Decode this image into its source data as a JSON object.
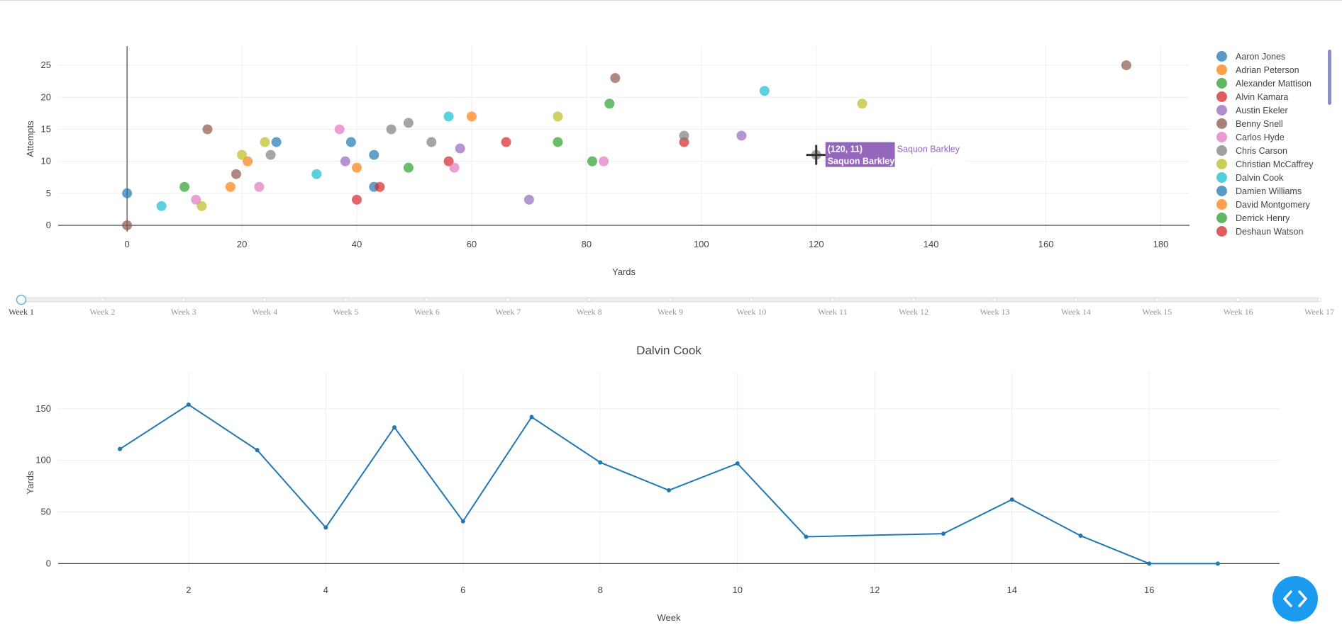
{
  "chart_data": [
    {
      "type": "scatter",
      "xlabel": "Yards",
      "ylabel": "Attempts",
      "xlim": [
        -12,
        185
      ],
      "ylim": [
        -1,
        28
      ],
      "x_ticks": [
        0,
        20,
        40,
        60,
        80,
        100,
        120,
        140,
        160,
        180
      ],
      "y_ticks": [
        0,
        5,
        10,
        15,
        20,
        25
      ],
      "points": [
        {
          "name": "Aaron Jones",
          "x": 0,
          "y": 5
        },
        {
          "name": "Aaron Jones",
          "x": 26,
          "y": 13
        },
        {
          "name": "Aaron Jones",
          "x": 39,
          "y": 13
        },
        {
          "name": "Aaron Jones",
          "x": 43,
          "y": 11
        },
        {
          "name": "Aaron Jones",
          "x": 43,
          "y": 6
        },
        {
          "name": "Adrian Peterson",
          "x": 18,
          "y": 6
        },
        {
          "name": "Adrian Peterson",
          "x": 21,
          "y": 10
        },
        {
          "name": "Adrian Peterson",
          "x": 40,
          "y": 9
        },
        {
          "name": "Adrian Peterson",
          "x": 60,
          "y": 17
        },
        {
          "name": "Alexander Mattison",
          "x": 10,
          "y": 6
        },
        {
          "name": "Alexander Mattison",
          "x": 49,
          "y": 9
        },
        {
          "name": "Alexander Mattison",
          "x": 75,
          "y": 13
        },
        {
          "name": "Alexander Mattison",
          "x": 81,
          "y": 10
        },
        {
          "name": "Alexander Mattison",
          "x": 84,
          "y": 19
        },
        {
          "name": "Alvin Kamara",
          "x": 40,
          "y": 4
        },
        {
          "name": "Alvin Kamara",
          "x": 44,
          "y": 6
        },
        {
          "name": "Alvin Kamara",
          "x": 56,
          "y": 10
        },
        {
          "name": "Alvin Kamara",
          "x": 66,
          "y": 13
        },
        {
          "name": "Alvin Kamara",
          "x": 97,
          "y": 13
        },
        {
          "name": "Austin Ekeler",
          "x": 38,
          "y": 10
        },
        {
          "name": "Austin Ekeler",
          "x": 58,
          "y": 12
        },
        {
          "name": "Austin Ekeler",
          "x": 70,
          "y": 4
        },
        {
          "name": "Austin Ekeler",
          "x": 107,
          "y": 14
        },
        {
          "name": "Benny Snell",
          "x": 0,
          "y": 0
        },
        {
          "name": "Benny Snell",
          "x": 14,
          "y": 15
        },
        {
          "name": "Benny Snell",
          "x": 19,
          "y": 8
        },
        {
          "name": "Benny Snell",
          "x": 85,
          "y": 23
        },
        {
          "name": "Benny Snell",
          "x": 174,
          "y": 25
        },
        {
          "name": "Carlos Hyde",
          "x": 12,
          "y": 4
        },
        {
          "name": "Carlos Hyde",
          "x": 23,
          "y": 6
        },
        {
          "name": "Carlos Hyde",
          "x": 37,
          "y": 15
        },
        {
          "name": "Carlos Hyde",
          "x": 57,
          "y": 9
        },
        {
          "name": "Carlos Hyde",
          "x": 83,
          "y": 10
        },
        {
          "name": "Chris Carson",
          "x": 25,
          "y": 11
        },
        {
          "name": "Chris Carson",
          "x": 46,
          "y": 15
        },
        {
          "name": "Chris Carson",
          "x": 49,
          "y": 16
        },
        {
          "name": "Chris Carson",
          "x": 53,
          "y": 13
        },
        {
          "name": "Chris Carson",
          "x": 97,
          "y": 14
        },
        {
          "name": "Chris Carson",
          "x": 120,
          "y": 11
        },
        {
          "name": "Christian McCaffrey",
          "x": 13,
          "y": 3
        },
        {
          "name": "Christian McCaffrey",
          "x": 20,
          "y": 11
        },
        {
          "name": "Christian McCaffrey",
          "x": 24,
          "y": 13
        },
        {
          "name": "Christian McCaffrey",
          "x": 75,
          "y": 17
        },
        {
          "name": "Christian McCaffrey",
          "x": 128,
          "y": 19
        },
        {
          "name": "Dalvin Cook",
          "x": 6,
          "y": 3
        },
        {
          "name": "Dalvin Cook",
          "x": 33,
          "y": 8
        },
        {
          "name": "Dalvin Cook",
          "x": 56,
          "y": 17
        },
        {
          "name": "Dalvin Cook",
          "x": 111,
          "y": 21
        }
      ],
      "hover": {
        "x": 120,
        "y": 11,
        "coord_label": "(120, 11)",
        "name": "Saquon Barkley",
        "color": "#9467bd"
      }
    },
    {
      "type": "line",
      "title": "Dalvin Cook",
      "xlabel": "Week",
      "ylabel": "Yards",
      "xlim": [
        0.1,
        17.9
      ],
      "ylim": [
        -8,
        165
      ],
      "x_ticks": [
        2,
        4,
        6,
        8,
        10,
        12,
        14,
        16
      ],
      "y_ticks": [
        0,
        50,
        100,
        150
      ],
      "x": [
        1,
        2,
        3,
        4,
        5,
        6,
        7,
        8,
        9,
        10,
        11,
        13,
        14,
        15,
        16,
        17
      ],
      "y": [
        111,
        154,
        110,
        35,
        132,
        41,
        142,
        98,
        71,
        97,
        26,
        29,
        62,
        27,
        0,
        0
      ],
      "color": "#1f77b4"
    }
  ],
  "legend": [
    {
      "label": "Aaron Jones",
      "color": "#1f77b4"
    },
    {
      "label": "Adrian Peterson",
      "color": "#ff7f0e"
    },
    {
      "label": "Alexander Mattison",
      "color": "#2ca02c"
    },
    {
      "label": "Alvin Kamara",
      "color": "#d62728"
    },
    {
      "label": "Austin Ekeler",
      "color": "#9467bd"
    },
    {
      "label": "Benny Snell",
      "color": "#8c564b"
    },
    {
      "label": "Carlos Hyde",
      "color": "#e377c2"
    },
    {
      "label": "Chris Carson",
      "color": "#7f7f7f"
    },
    {
      "label": "Christian McCaffrey",
      "color": "#bcbd22"
    },
    {
      "label": "Dalvin Cook",
      "color": "#17becf"
    },
    {
      "label": "Damien Williams",
      "color": "#1f77b4"
    },
    {
      "label": "David Montgomery",
      "color": "#ff7f0e"
    },
    {
      "label": "Derrick Henry",
      "color": "#2ca02c"
    },
    {
      "label": "Deshaun Watson",
      "color": "#d62728"
    }
  ],
  "slider": {
    "weeks": [
      "Week 1",
      "Week 2",
      "Week 3",
      "Week 4",
      "Week 5",
      "Week 6",
      "Week 7",
      "Week 8",
      "Week 9",
      "Week 10",
      "Week 11",
      "Week 12",
      "Week 13",
      "Week 14",
      "Week 15",
      "Week 16",
      "Week 17"
    ],
    "active_index": 0
  },
  "code_button_icon": "code-icon"
}
